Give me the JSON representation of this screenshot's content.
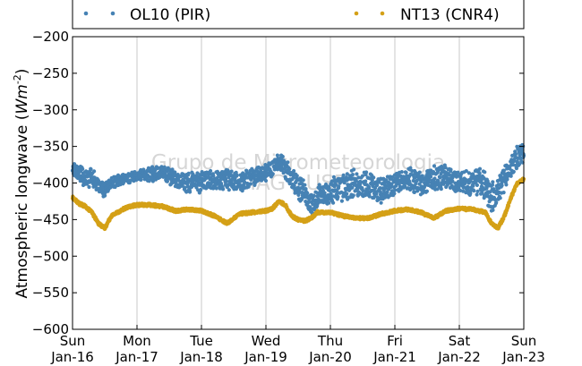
{
  "chart_data": {
    "type": "scatter",
    "ylabel": "Atmospheric longwave",
    "ylabel_unit_base": "Wm",
    "ylabel_unit_exp": "-2",
    "ylim": [
      -600,
      -200
    ],
    "yticks": [
      -200,
      -250,
      -300,
      -350,
      -400,
      -450,
      -500,
      -550,
      -600
    ],
    "ytick_labels": [
      "−200",
      "−250",
      "−300",
      "−350",
      "−400",
      "−450",
      "−500",
      "−550",
      "−600"
    ],
    "xlim": [
      "2023-01-16",
      "2023-01-23"
    ],
    "xticks": [
      {
        "day": "Sun",
        "date": "Jan-16"
      },
      {
        "day": "Mon",
        "date": "Jan-17"
      },
      {
        "day": "Tue",
        "date": "Jan-18"
      },
      {
        "day": "Wed",
        "date": "Jan-19"
      },
      {
        "day": "Thu",
        "date": "Jan-20"
      },
      {
        "day": "Fri",
        "date": "Jan-21"
      },
      {
        "day": "Sat",
        "date": "Jan-22"
      },
      {
        "day": "Sun",
        "date": "Jan-23"
      }
    ],
    "grid": "vertical",
    "legend_location": "top-outside",
    "watermark": [
      "Grupo de Micrometeorologia",
      "IAG / USP"
    ],
    "series": [
      {
        "name": "OL10 (PIR)",
        "color": "#4682b4",
        "marker": "dot",
        "x_days": [
          0.0,
          0.1,
          0.2,
          0.3,
          0.4,
          0.5,
          0.6,
          0.7,
          0.8,
          0.9,
          1.0,
          1.2,
          1.4,
          1.6,
          1.8,
          2.0,
          2.2,
          2.4,
          2.6,
          2.8,
          3.0,
          3.1,
          3.2,
          3.3,
          3.4,
          3.5,
          3.6,
          3.7,
          3.8,
          4.0,
          4.2,
          4.4,
          4.6,
          4.8,
          5.0,
          5.2,
          5.4,
          5.6,
          5.8,
          6.0,
          6.2,
          6.3,
          6.4,
          6.5,
          6.6,
          6.7,
          6.8,
          6.9,
          7.0
        ],
        "y_center": [
          -380,
          -385,
          -395,
          -390,
          -405,
          -410,
          -400,
          -398,
          -395,
          -392,
          -390,
          -388,
          -385,
          -395,
          -400,
          -398,
          -396,
          -395,
          -400,
          -390,
          -385,
          -378,
          -372,
          -380,
          -395,
          -405,
          -415,
          -430,
          -420,
          -410,
          -405,
          -400,
          -405,
          -408,
          -400,
          -395,
          -400,
          -395,
          -392,
          -398,
          -400,
          -395,
          -405,
          -420,
          -412,
          -395,
          -380,
          -365,
          -355
        ],
        "y_spread": [
          10,
          10,
          12,
          10,
          8,
          8,
          7,
          7,
          6,
          6,
          6,
          8,
          9,
          10,
          12,
          12,
          12,
          12,
          12,
          12,
          10,
          10,
          10,
          12,
          14,
          14,
          14,
          12,
          14,
          15,
          16,
          16,
          16,
          15,
          14,
          14,
          14,
          14,
          14,
          14,
          14,
          16,
          16,
          16,
          16,
          14,
          14,
          14,
          14
        ]
      },
      {
        "name": "NT13 (CNR4)",
        "color": "#d4a017",
        "marker": "dot",
        "x_days": [
          0.0,
          0.1,
          0.2,
          0.3,
          0.4,
          0.5,
          0.6,
          0.7,
          0.8,
          0.9,
          1.0,
          1.2,
          1.4,
          1.6,
          1.8,
          2.0,
          2.2,
          2.4,
          2.6,
          2.8,
          3.0,
          3.1,
          3.2,
          3.3,
          3.4,
          3.5,
          3.6,
          3.7,
          3.8,
          4.0,
          4.2,
          4.4,
          4.6,
          4.8,
          5.0,
          5.2,
          5.4,
          5.6,
          5.8,
          6.0,
          6.2,
          6.3,
          6.4,
          6.5,
          6.6,
          6.7,
          6.8,
          6.9,
          7.0
        ],
        "y_center": [
          -420,
          -428,
          -432,
          -440,
          -455,
          -462,
          -445,
          -440,
          -435,
          -432,
          -430,
          -430,
          -432,
          -438,
          -436,
          -438,
          -445,
          -455,
          -442,
          -440,
          -438,
          -435,
          -425,
          -430,
          -445,
          -450,
          -452,
          -448,
          -440,
          -440,
          -445,
          -448,
          -448,
          -442,
          -438,
          -436,
          -440,
          -448,
          -438,
          -435,
          -436,
          -438,
          -440,
          -455,
          -462,
          -445,
          -420,
          -400,
          -395
        ]
      }
    ]
  }
}
